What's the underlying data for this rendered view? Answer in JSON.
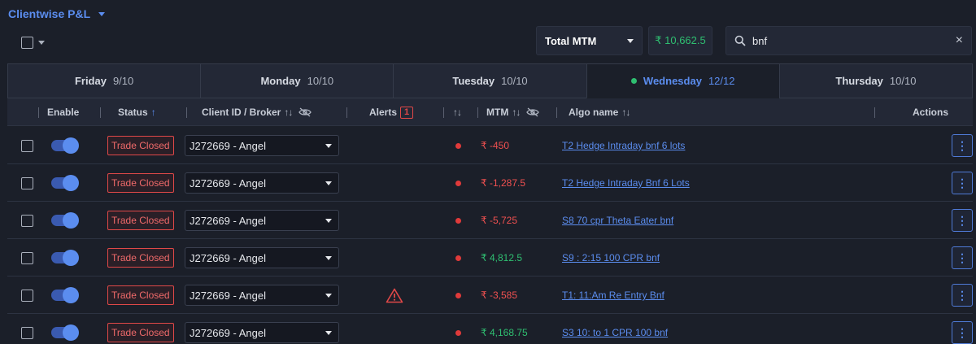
{
  "title": "Clientwise P&L",
  "mtm_select": {
    "label": "Total MTM"
  },
  "mtm_total": "₹ 10,662.5",
  "search": {
    "value": "bnf",
    "clear_icon": "×"
  },
  "tabs": [
    {
      "day": "Friday",
      "count": "9/10",
      "active": false
    },
    {
      "day": "Monday",
      "count": "10/10",
      "active": false
    },
    {
      "day": "Tuesday",
      "count": "10/10",
      "active": false
    },
    {
      "day": "Wednesday",
      "count": "12/12",
      "active": true
    },
    {
      "day": "Thursday",
      "count": "10/10",
      "active": false
    }
  ],
  "columns": {
    "enable": "Enable",
    "status": "Status",
    "client": "Client ID / Broker",
    "alerts": "Alerts",
    "alerts_count": "1",
    "mtm": "MTM",
    "algo": "Algo name",
    "actions": "Actions"
  },
  "colors": {
    "accent": "#5b8def",
    "negative": "#f05050",
    "positive": "#2fbf71"
  },
  "rows": [
    {
      "status": "Trade Closed",
      "client": "J272669 - Angel",
      "alert": false,
      "mtm": "₹ -450",
      "mtm_sign": "neg",
      "algo": "T2 Hedge Intraday bnf 6 lots"
    },
    {
      "status": "Trade Closed",
      "client": "J272669 - Angel",
      "alert": false,
      "mtm": "₹ -1,287.5",
      "mtm_sign": "neg",
      "algo": "T2 Hedge Intraday Bnf 6 Lots"
    },
    {
      "status": "Trade Closed",
      "client": "J272669 - Angel",
      "alert": false,
      "mtm": "₹ -5,725",
      "mtm_sign": "neg",
      "algo": "S8 70 cpr Theta Eater bnf"
    },
    {
      "status": "Trade Closed",
      "client": "J272669 - Angel",
      "alert": false,
      "mtm": "₹ 4,812.5",
      "mtm_sign": "pos",
      "algo": "S9 : 2:15 100 CPR bnf"
    },
    {
      "status": "Trade Closed",
      "client": "J272669 - Angel",
      "alert": true,
      "mtm": "₹ -3,585",
      "mtm_sign": "neg",
      "algo": "T1: 11:Am Re Entry Bnf"
    },
    {
      "status": "Trade Closed",
      "client": "J272669 - Angel",
      "alert": false,
      "mtm": "₹ 4,168.75",
      "mtm_sign": "pos",
      "algo": "S3 10: to 1 CPR 100 bnf"
    }
  ]
}
